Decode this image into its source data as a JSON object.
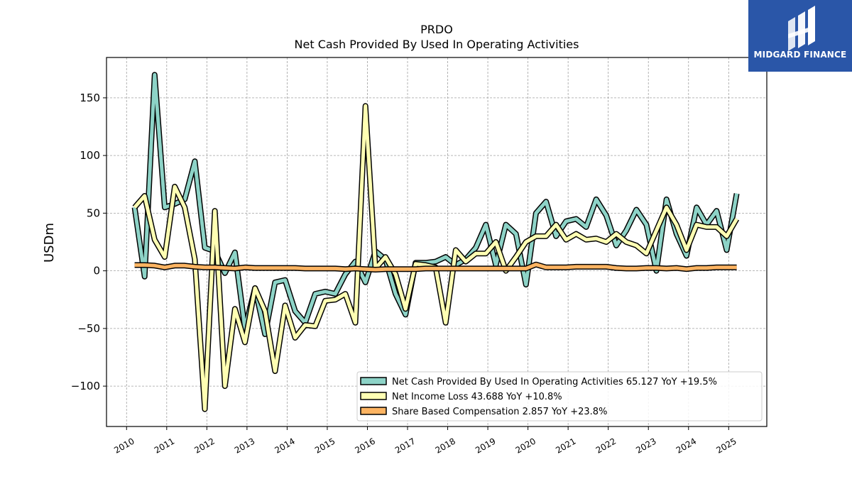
{
  "chart_data": {
    "type": "line",
    "title": "PRDO",
    "subtitle": "Net Cash Provided By Used In Operating Activities",
    "ylabel": "USDm",
    "xlabel": "",
    "xlim": [
      2009.5,
      2025.95
    ],
    "ylim": [
      -135,
      185
    ],
    "yticks": [
      -100,
      -50,
      0,
      50,
      100,
      150
    ],
    "ytick_labels": [
      "−100",
      "−50",
      "0",
      "50",
      "100",
      "150"
    ],
    "xticks": [
      2010,
      2011,
      2012,
      2013,
      2014,
      2015,
      2016,
      2017,
      2018,
      2019,
      2020,
      2021,
      2022,
      2023,
      2024,
      2025
    ],
    "xtick_labels": [
      "2010",
      "2011",
      "2012",
      "2013",
      "2014",
      "2015",
      "2016",
      "2017",
      "2018",
      "2019",
      "2020",
      "2021",
      "2022",
      "2023",
      "2024",
      "2025"
    ],
    "grid": true,
    "legend_position": "bottom-right",
    "series": [
      {
        "name": "Net Cash Provided By Used In Operating Activities",
        "legend_label": "Net Cash Provided By Used In Operating Activities  65.127 YoY +19.5%",
        "color": "#8dd3c7",
        "x": [
          2010.2,
          2010.45,
          2010.7,
          2010.95,
          2011.2,
          2011.45,
          2011.7,
          2011.95,
          2012.2,
          2012.45,
          2012.7,
          2012.95,
          2013.2,
          2013.45,
          2013.7,
          2013.95,
          2014.2,
          2014.45,
          2014.7,
          2014.95,
          2015.2,
          2015.45,
          2015.7,
          2015.95,
          2016.2,
          2016.45,
          2016.7,
          2016.95,
          2017.2,
          2017.45,
          2017.7,
          2017.95,
          2018.2,
          2018.45,
          2018.7,
          2018.95,
          2019.2,
          2019.45,
          2019.7,
          2019.95,
          2020.2,
          2020.45,
          2020.7,
          2020.95,
          2021.2,
          2021.45,
          2021.7,
          2021.95,
          2022.2,
          2022.45,
          2022.7,
          2022.95,
          2023.2,
          2023.45,
          2023.7,
          2023.95,
          2024.2,
          2024.45,
          2024.7,
          2024.95,
          2025.2
        ],
        "values": [
          55,
          -5,
          170,
          55,
          58,
          62,
          95,
          20,
          17,
          -2,
          16,
          -50,
          -15,
          -55,
          -10,
          -8,
          -35,
          -45,
          -20,
          -18,
          -20,
          -3,
          8,
          -10,
          17,
          10,
          -20,
          -38,
          7,
          7,
          8,
          12,
          5,
          10,
          20,
          40,
          5,
          40,
          32,
          -12,
          50,
          60,
          30,
          43,
          45,
          38,
          62,
          48,
          22,
          35,
          53,
          40,
          0,
          62,
          32,
          13,
          55,
          40,
          52,
          18,
          67
        ]
      },
      {
        "name": "Net Income Loss",
        "legend_label": "Net Income Loss  43.688 YoY +10.8%",
        "color": "#ffffb3",
        "x": [
          2010.2,
          2010.45,
          2010.7,
          2010.95,
          2011.2,
          2011.45,
          2011.7,
          2011.95,
          2012.2,
          2012.45,
          2012.7,
          2012.95,
          2013.2,
          2013.45,
          2013.7,
          2013.95,
          2014.2,
          2014.45,
          2014.7,
          2014.95,
          2015.2,
          2015.45,
          2015.7,
          2015.95,
          2016.2,
          2016.45,
          2016.7,
          2016.95,
          2017.2,
          2017.45,
          2017.7,
          2017.95,
          2018.2,
          2018.45,
          2018.7,
          2018.95,
          2019.2,
          2019.45,
          2019.7,
          2019.95,
          2020.2,
          2020.45,
          2020.7,
          2020.95,
          2021.2,
          2021.45,
          2021.7,
          2021.95,
          2022.2,
          2022.45,
          2022.7,
          2022.95,
          2023.2,
          2023.45,
          2023.7,
          2023.95,
          2024.2,
          2024.45,
          2024.7,
          2024.95,
          2025.2
        ],
        "values": [
          55,
          65,
          27,
          12,
          73,
          55,
          10,
          -120,
          52,
          -100,
          -33,
          -62,
          -15,
          -35,
          -87,
          -30,
          -58,
          -47,
          -48,
          -26,
          -25,
          -20,
          -45,
          143,
          2,
          12,
          -3,
          -33,
          6,
          5,
          3,
          -45,
          18,
          8,
          15,
          15,
          25,
          0,
          12,
          25,
          30,
          30,
          40,
          27,
          32,
          27,
          28,
          25,
          32,
          25,
          22,
          15,
          35,
          55,
          40,
          18,
          40,
          38,
          38,
          30,
          45
        ]
      },
      {
        "name": "Share Based Compensation",
        "legend_label": "Share Based Compensation  2.857 YoY +23.8%",
        "color": "#fdb462",
        "x": [
          2010.2,
          2010.45,
          2010.7,
          2010.95,
          2011.2,
          2011.45,
          2011.7,
          2011.95,
          2012.2,
          2012.45,
          2012.7,
          2012.95,
          2013.2,
          2013.45,
          2013.7,
          2013.95,
          2014.2,
          2014.45,
          2014.7,
          2014.95,
          2015.2,
          2015.45,
          2015.7,
          2015.95,
          2016.2,
          2016.45,
          2016.7,
          2016.95,
          2017.2,
          2017.45,
          2017.7,
          2017.95,
          2018.2,
          2018.45,
          2018.7,
          2018.95,
          2019.2,
          2019.45,
          2019.7,
          2019.95,
          2020.2,
          2020.45,
          2020.7,
          2020.95,
          2021.2,
          2021.45,
          2021.7,
          2021.95,
          2022.2,
          2022.45,
          2022.7,
          2022.95,
          2023.2,
          2023.45,
          2023.7,
          2023.95,
          2024.2,
          2024.45,
          2024.7,
          2024.95,
          2025.2
        ],
        "values": [
          5,
          5,
          4.5,
          3,
          4.5,
          4.5,
          3.5,
          3,
          3,
          2.5,
          2,
          3,
          2.5,
          2.5,
          2.5,
          2.5,
          2.5,
          2,
          2,
          2,
          2,
          1.5,
          2,
          1.5,
          1,
          1.5,
          1.5,
          1.5,
          1.5,
          2,
          2,
          2,
          2,
          2,
          2,
          2,
          2,
          2,
          2,
          2,
          5.5,
          3,
          3,
          3,
          3.5,
          3.5,
          3.5,
          3.5,
          2.5,
          2,
          2,
          2.5,
          2.5,
          2,
          2.5,
          1.5,
          2.5,
          2.5,
          3,
          3,
          3
        ]
      }
    ]
  },
  "logo": {
    "text": "MIDGARD FINANCE",
    "bg_color": "#2a56a8"
  }
}
